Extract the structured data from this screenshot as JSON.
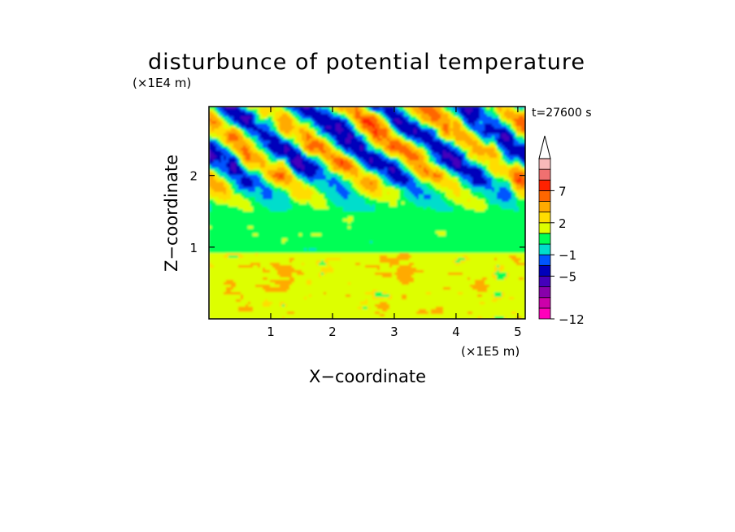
{
  "chart_data": {
    "type": "heatmap",
    "title": "disturbunce of potential temperature",
    "xlabel": "X−coordinate",
    "ylabel": "Z−coordinate",
    "x_scale_label": "(×1E5 m)",
    "y_scale_label": "(×1E4 m)",
    "time_label": "t=27600 s",
    "xlim": [
      0,
      5.12
    ],
    "ylim": [
      0,
      2.96
    ],
    "x_ticks": [
      "1",
      "2",
      "3",
      "4",
      "5"
    ],
    "x_tick_values": [
      1,
      2,
      3,
      4,
      5
    ],
    "y_ticks": [
      "1",
      "2"
    ],
    "y_tick_values": [
      1,
      2
    ],
    "colorbar": {
      "levels_from_bottom": [
        "#ff00bb",
        "#cc00aa",
        "#8800aa",
        "#4400bb",
        "#0000bb",
        "#0055ff",
        "#00ddcc",
        "#00ff55",
        "#ddff00",
        "#ffdd00",
        "#ffaa00",
        "#ff6600",
        "#ff2200",
        "#f07070",
        "#f8b8b8"
      ],
      "tick_labels": [
        "−12",
        "−5",
        "−1",
        "2",
        "7"
      ],
      "tick_level_boundaries": [
        0,
        4,
        6,
        9,
        12
      ],
      "extend": "max",
      "extend_color": "#ffffff"
    },
    "field_description_bands": [
      {
        "z_range": [
          0,
          0.9
        ],
        "dominant": "yellow-orange"
      },
      {
        "z_range": [
          0.9,
          1.4
        ],
        "dominant": "green"
      },
      {
        "z_range": [
          1.4,
          2.96
        ],
        "dominant": "mixed red-blue waves"
      }
    ]
  }
}
